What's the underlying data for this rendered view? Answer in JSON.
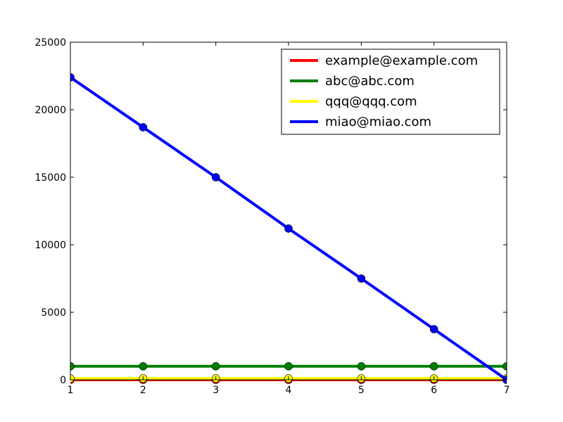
{
  "chart_data": {
    "type": "line",
    "title": "",
    "xlabel": "",
    "ylabel": "",
    "x": [
      1,
      2,
      3,
      4,
      5,
      6,
      7
    ],
    "xlim": [
      1,
      7
    ],
    "ylim": [
      0,
      25000
    ],
    "xticks": [
      "1",
      "2",
      "3",
      "4",
      "5",
      "6",
      "7"
    ],
    "yticks": [
      "0",
      "5000",
      "10000",
      "15000",
      "20000",
      "25000"
    ],
    "grid": false,
    "legend_position": "top-right",
    "series": [
      {
        "name": "example@example.com",
        "color": "#ff0000",
        "values": [
          0,
          0,
          0,
          0,
          0,
          0,
          0
        ]
      },
      {
        "name": "abc@abc.com",
        "color": "#008000",
        "values": [
          1000,
          1000,
          1000,
          1000,
          1000,
          1000,
          1000
        ]
      },
      {
        "name": "qqq@qqq.com",
        "color": "#ffff00",
        "values": [
          100,
          100,
          100,
          100,
          100,
          100,
          100
        ]
      },
      {
        "name": "miao@miao.com",
        "color": "#0000ff",
        "values": [
          22400,
          18700,
          15000,
          11200,
          7500,
          3750,
          0
        ]
      }
    ]
  }
}
